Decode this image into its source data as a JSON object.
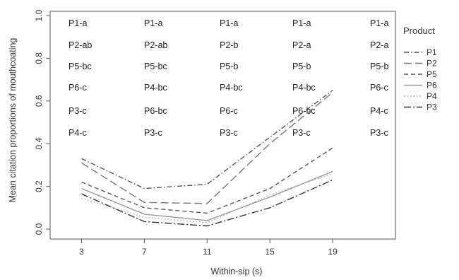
{
  "chart_data": {
    "type": "line",
    "title": "",
    "xlabel": "Within-sip (s)",
    "ylabel": "Mean citation proportions of mouthcoating",
    "x": [
      3,
      7,
      11,
      15,
      19
    ],
    "x_tick_labels": [
      "3",
      "7",
      "11",
      "15",
      "19"
    ],
    "xlim": [
      1,
      23
    ],
    "ylim": [
      0,
      1.0
    ],
    "y_ticks": [
      0.0,
      0.2,
      0.4,
      0.6,
      0.8,
      1.0
    ],
    "y_tick_labels": [
      "0.0",
      "0.2",
      "0.4",
      "0.6",
      "0.8",
      "1.0"
    ],
    "grid": false,
    "legend": {
      "title": "Product",
      "position": "right",
      "entries": [
        "P1",
        "P2",
        "P5",
        "P6",
        "P4",
        "P3"
      ]
    },
    "series": [
      {
        "name": "P1",
        "style": "dash-dot",
        "color": "#555555",
        "values": [
          0.33,
          0.19,
          0.21,
          0.43,
          0.65
        ]
      },
      {
        "name": "P2",
        "style": "long-dash",
        "color": "#777777",
        "values": [
          0.31,
          0.125,
          0.12,
          0.4,
          0.64
        ]
      },
      {
        "name": "P5",
        "style": "dash",
        "color": "#555555",
        "values": [
          0.22,
          0.1,
          0.075,
          0.19,
          0.38
        ]
      },
      {
        "name": "P6",
        "style": "solid",
        "color": "#9a9a9a",
        "values": [
          0.19,
          0.07,
          0.04,
          0.15,
          0.27
        ]
      },
      {
        "name": "P4",
        "style": "dotted",
        "color": "#aaaaaa",
        "values": [
          0.145,
          0.055,
          0.03,
          0.16,
          0.26
        ]
      },
      {
        "name": "P3",
        "style": "dash-dot-long",
        "color": "#333333",
        "values": [
          0.165,
          0.035,
          0.015,
          0.1,
          0.23
        ]
      }
    ],
    "annotations": [
      [
        "P1-a",
        "P2-ab",
        "P5-bc",
        "P6-c",
        "P3-c",
        "P4-c"
      ],
      [
        "P1-a",
        "P2-ab",
        "P5-bc",
        "P4-bc",
        "P6-bc",
        "P3-c"
      ],
      [
        "P1-a",
        "P2-b",
        "P5-b",
        "P4-bc",
        "P6-c",
        "P3-c"
      ],
      [
        "P1-a",
        "P2-a",
        "P5-b",
        "P4-bc",
        "P6-bc",
        "P3-c"
      ],
      [
        "P1-a",
        "P2-a",
        "P5-b",
        "P6-c",
        "P4-c",
        "P3-c"
      ]
    ]
  }
}
